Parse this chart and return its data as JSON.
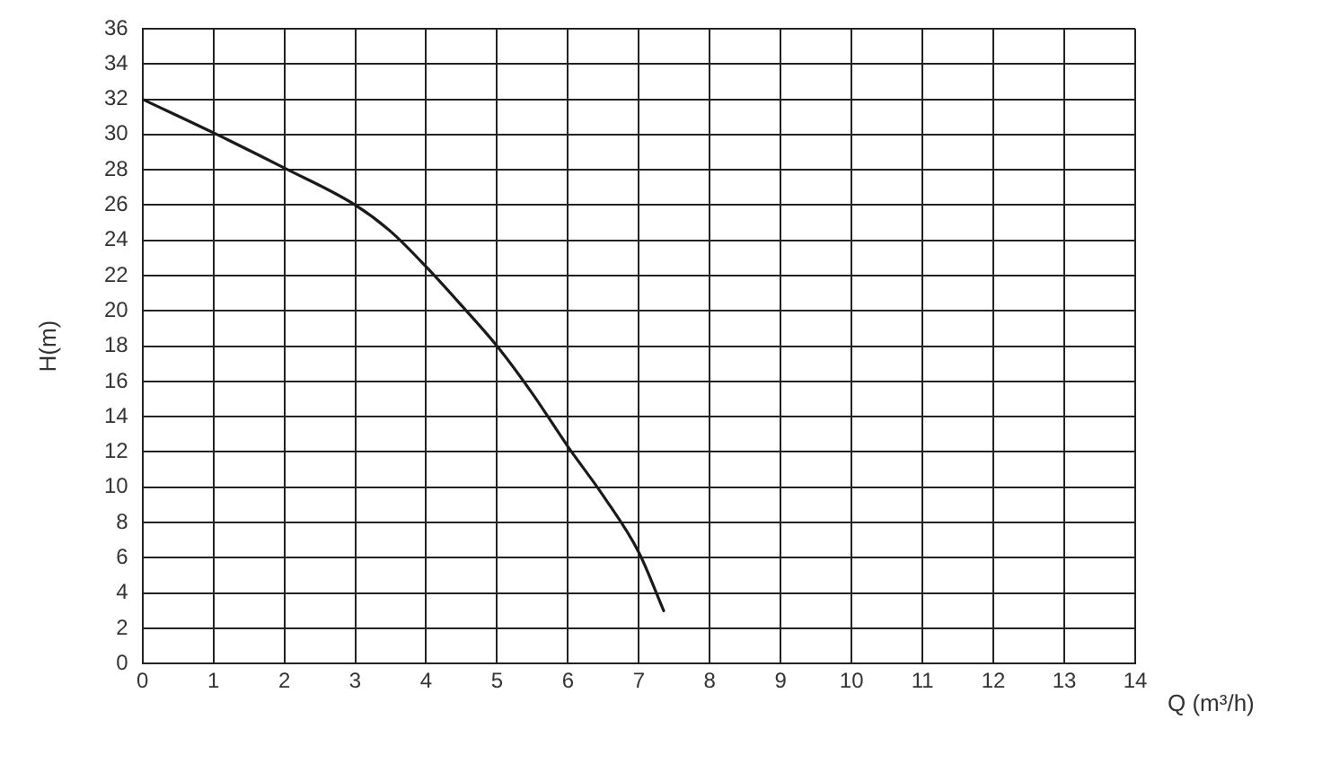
{
  "chart_data": {
    "type": "line",
    "xlabel": "Q (m³/h)",
    "ylabel": "H(m)",
    "x": [
      0,
      1,
      2,
      3,
      3.5,
      4,
      4.5,
      5,
      5.5,
      6,
      6.5,
      7,
      7.35
    ],
    "series": [
      {
        "color": "#1a1a1a",
        "values": [
          32,
          30.1,
          28.1,
          26,
          24.5,
          22.5,
          20.3,
          18,
          15.3,
          12.3,
          9.5,
          6.3,
          3
        ]
      }
    ],
    "xlim": [
      0,
      14
    ],
    "xticks": [
      0,
      1,
      2,
      3,
      4,
      5,
      6,
      7,
      8,
      9,
      10,
      11,
      12,
      13,
      14
    ],
    "ylim": [
      0,
      36
    ],
    "yticks": [
      0,
      2,
      4,
      6,
      8,
      10,
      12,
      14,
      16,
      18,
      20,
      22,
      24,
      26,
      28,
      30,
      32,
      34,
      36
    ],
    "grid": true,
    "legend": false,
    "marker": "none",
    "line_style": "solid"
  }
}
